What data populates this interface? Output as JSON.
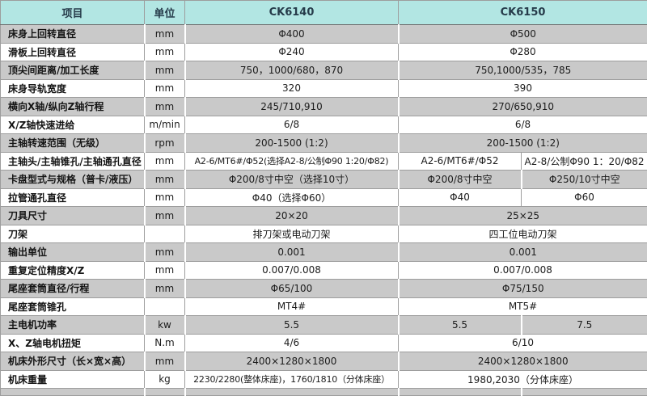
{
  "colors": {
    "header_bg": "#b2e6e3",
    "header_text": "#263b4a",
    "alt_row_bg": "#c9c9c9",
    "row_bg": "#ffffff",
    "grid_line": "#9d9d9d"
  },
  "header": {
    "item": "项目",
    "unit": "单位",
    "model_1": "CK6140",
    "model_2": "CK6150"
  },
  "rows": [
    {
      "label": "床身上回转直径",
      "unit": "mm",
      "ck6140": "Φ400",
      "ck6150": "Φ500"
    },
    {
      "label": "滑板上回转直径",
      "unit": "mm",
      "ck6140": "Φ240",
      "ck6150": "Φ280"
    },
    {
      "label": "顶尖间距离/加工长度",
      "unit": "mm",
      "ck6140": "750，1000/680，870",
      "ck6150": "750,1000/535，785"
    },
    {
      "label": "床身导轨宽度",
      "unit": "mm",
      "ck6140": "320",
      "ck6150": "390"
    },
    {
      "label": "横向X轴/纵向Z轴行程",
      "unit": "mm",
      "ck6140": "245/710,910",
      "ck6150": "270/650,910"
    },
    {
      "label": "X/Z轴快速进给",
      "unit": "m/min",
      "ck6140": "6/8",
      "ck6150": "6/8"
    },
    {
      "label": "主轴转速范围（无级）",
      "unit": "rpm",
      "ck6140": "200-1500 (1:2)",
      "ck6150": "200-1500 (1:2)"
    },
    {
      "label": "主轴头/主轴锥孔/主轴通孔直径",
      "unit": "mm",
      "ck6140": "A2-6/MT6#/Φ52(选择A2-8/公制Φ90 1:20/Φ82)",
      "ck6150_a": "A2-6/MT6#/Φ52",
      "ck6150_b": "A2-8/公制Φ90 1：20/Φ82"
    },
    {
      "label": "卡盘型式与规格（普卡/液压）",
      "unit": "mm",
      "ck6140": "Φ200/8寸中空（选择10寸）",
      "ck6150_a": "Φ200/8寸中空",
      "ck6150_b": "Φ250/10寸中空"
    },
    {
      "label": "拉管通孔直径",
      "unit": "mm",
      "ck6140": "Φ40（选择Φ60）",
      "ck6150_a": "Φ40",
      "ck6150_b": "Φ60"
    },
    {
      "label": "刀具尺寸",
      "unit": "mm",
      "ck6140": "20×20",
      "ck6150": "25×25"
    },
    {
      "label": "刀架",
      "unit": "",
      "ck6140": "排刀架或电动刀架",
      "ck6150": "四工位电动刀架"
    },
    {
      "label": "输出单位",
      "unit": "mm",
      "ck6140": "0.001",
      "ck6150": "0.001"
    },
    {
      "label": "重复定位精度X/Z",
      "unit": "mm",
      "ck6140": "0.007/0.008",
      "ck6150": "0.007/0.008"
    },
    {
      "label": "尾座套筒直径/行程",
      "unit": "mm",
      "ck6140": "Φ65/100",
      "ck6150": "Φ75/150"
    },
    {
      "label": "尾座套筒锥孔",
      "unit": "",
      "ck6140": "MT4#",
      "ck6150": "MT5#"
    },
    {
      "label": "主电机功率",
      "unit": "kw",
      "ck6140": "5.5",
      "ck6150_a": "5.5",
      "ck6150_b": "7.5"
    },
    {
      "label": "X、Z轴电机扭矩",
      "unit": "N.m",
      "ck6140": "4/6",
      "ck6150": "6/10"
    },
    {
      "label": "机床外形尺寸（长×宽×高）",
      "unit": "mm",
      "ck6140": "2400×1280×1800",
      "ck6150": "2400×1280×1800"
    },
    {
      "label": "机床重量",
      "unit": "kg",
      "ck6140": "2230/2280(整体床座)，1760/1810（分体床座）",
      "ck6150": "1980,2030（分体床座）"
    }
  ]
}
